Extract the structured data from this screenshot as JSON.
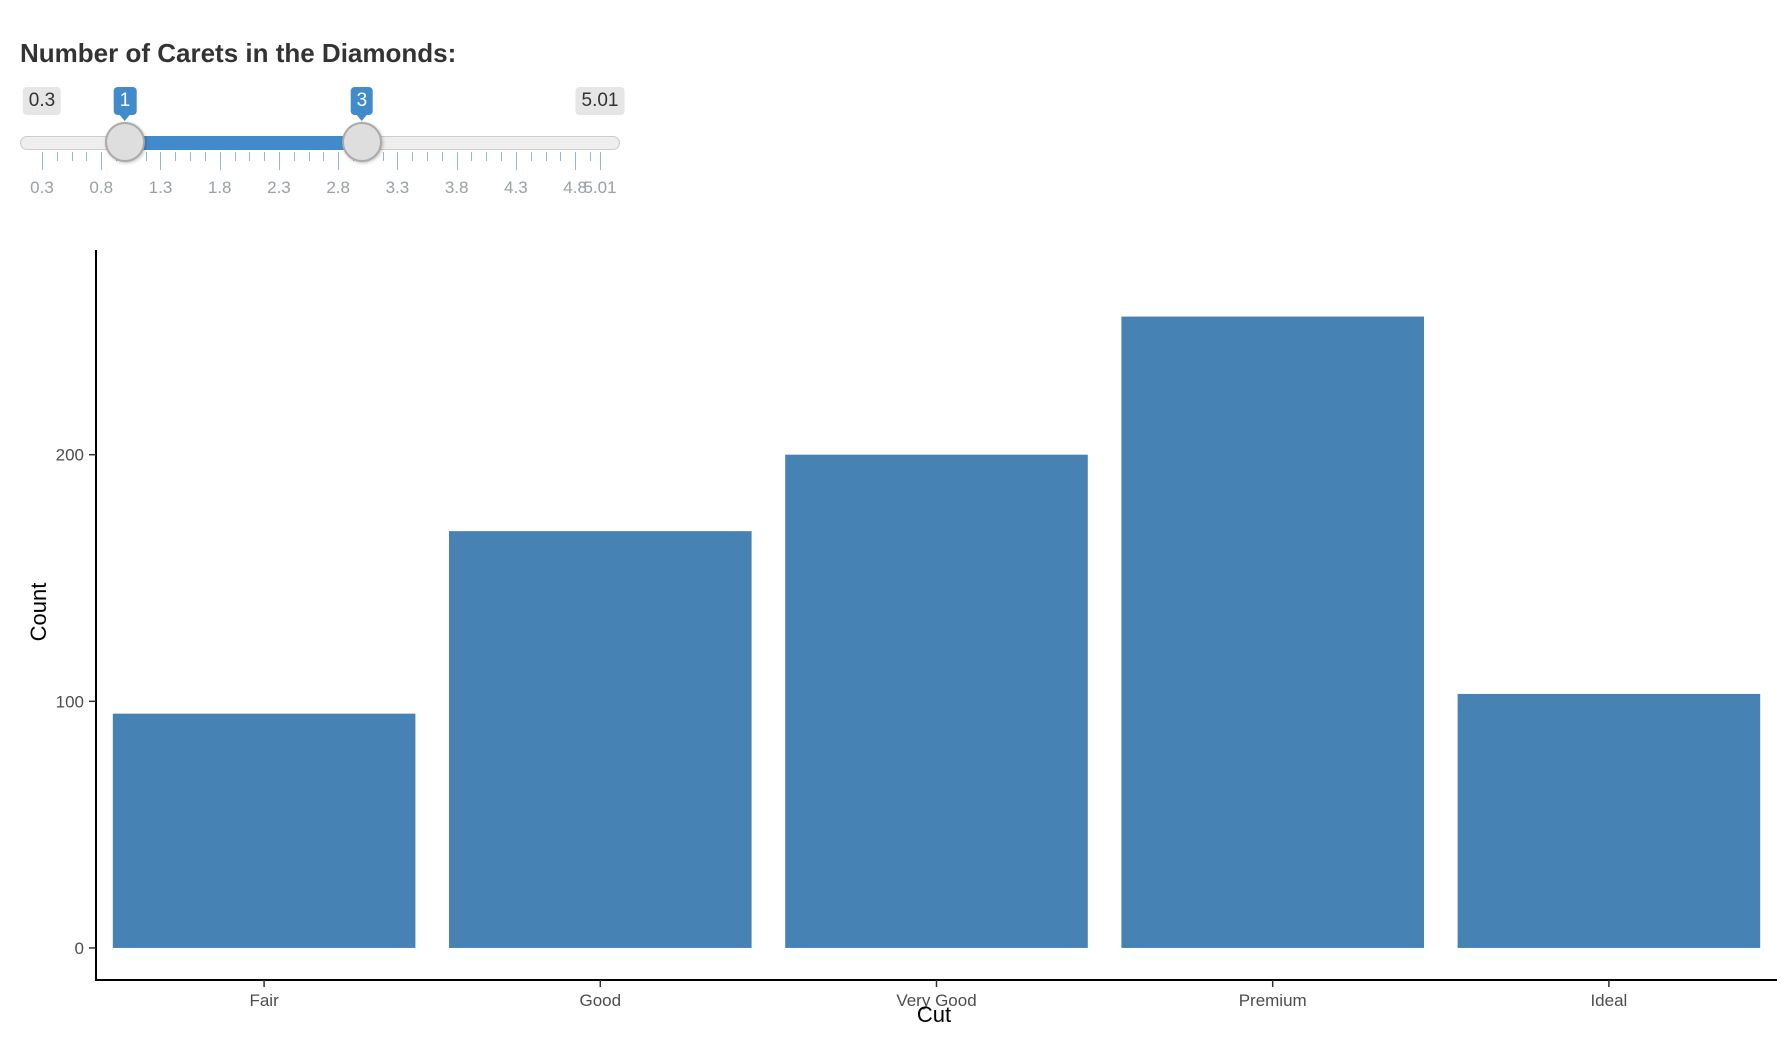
{
  "slider": {
    "label": "Number of Carets in the Diamonds:",
    "min": 0.3,
    "max": 5.01,
    "from": 1,
    "to": 3,
    "min_label": "0.3",
    "max_label": "5.01",
    "from_label": "1",
    "to_label": "3",
    "tick_labels": [
      "0.3",
      "0.8",
      "1.3",
      "1.8",
      "2.3",
      "2.8",
      "3.3",
      "3.8",
      "4.3",
      "4.8",
      "5.01"
    ],
    "accent_color": "#428bca"
  },
  "chart_data": {
    "type": "bar",
    "categories": [
      "Fair",
      "Good",
      "Very Good",
      "Premium",
      "Ideal"
    ],
    "values": [
      95,
      169,
      200,
      256,
      103
    ],
    "xlabel": "Cut",
    "ylabel": "Count",
    "ylim": [
      -13,
      283
    ],
    "yticks": [
      "0",
      "100",
      "200"
    ],
    "bar_color": "#4682b4",
    "grid": false
  }
}
